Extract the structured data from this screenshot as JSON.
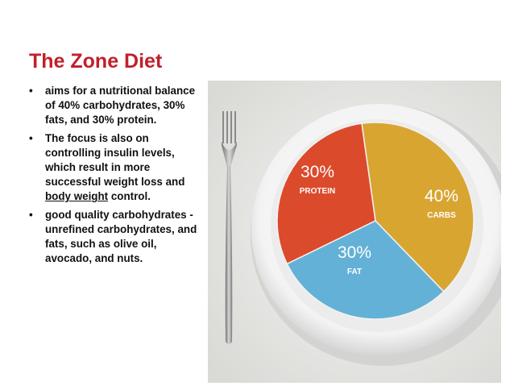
{
  "slide": {
    "title": "The Zone Diet",
    "bullets": [
      {
        "text": "aims for a nutritional balance of 40% carbohydrates, 30% fats, and 30% protein."
      },
      {
        "text_before": "The focus is also on controlling insulin levels, which result in more successful weight loss and ",
        "link_text": "body weight",
        "text_after": " control."
      },
      {
        "text": "good quality carbohydrates - unrefined carbohydrates, and fats, such as olive oil, avocado, and nuts."
      }
    ]
  },
  "plate": {
    "segments": [
      {
        "percent_label": "40%",
        "name": "CARBS",
        "value": 40,
        "color": "#d9a531"
      },
      {
        "percent_label": "30%",
        "name": "PROTEIN",
        "value": 30,
        "color": "#dc4a2c"
      },
      {
        "percent_label": "30%",
        "name": "FAT",
        "value": 30,
        "color": "#63b1d6"
      }
    ]
  }
}
